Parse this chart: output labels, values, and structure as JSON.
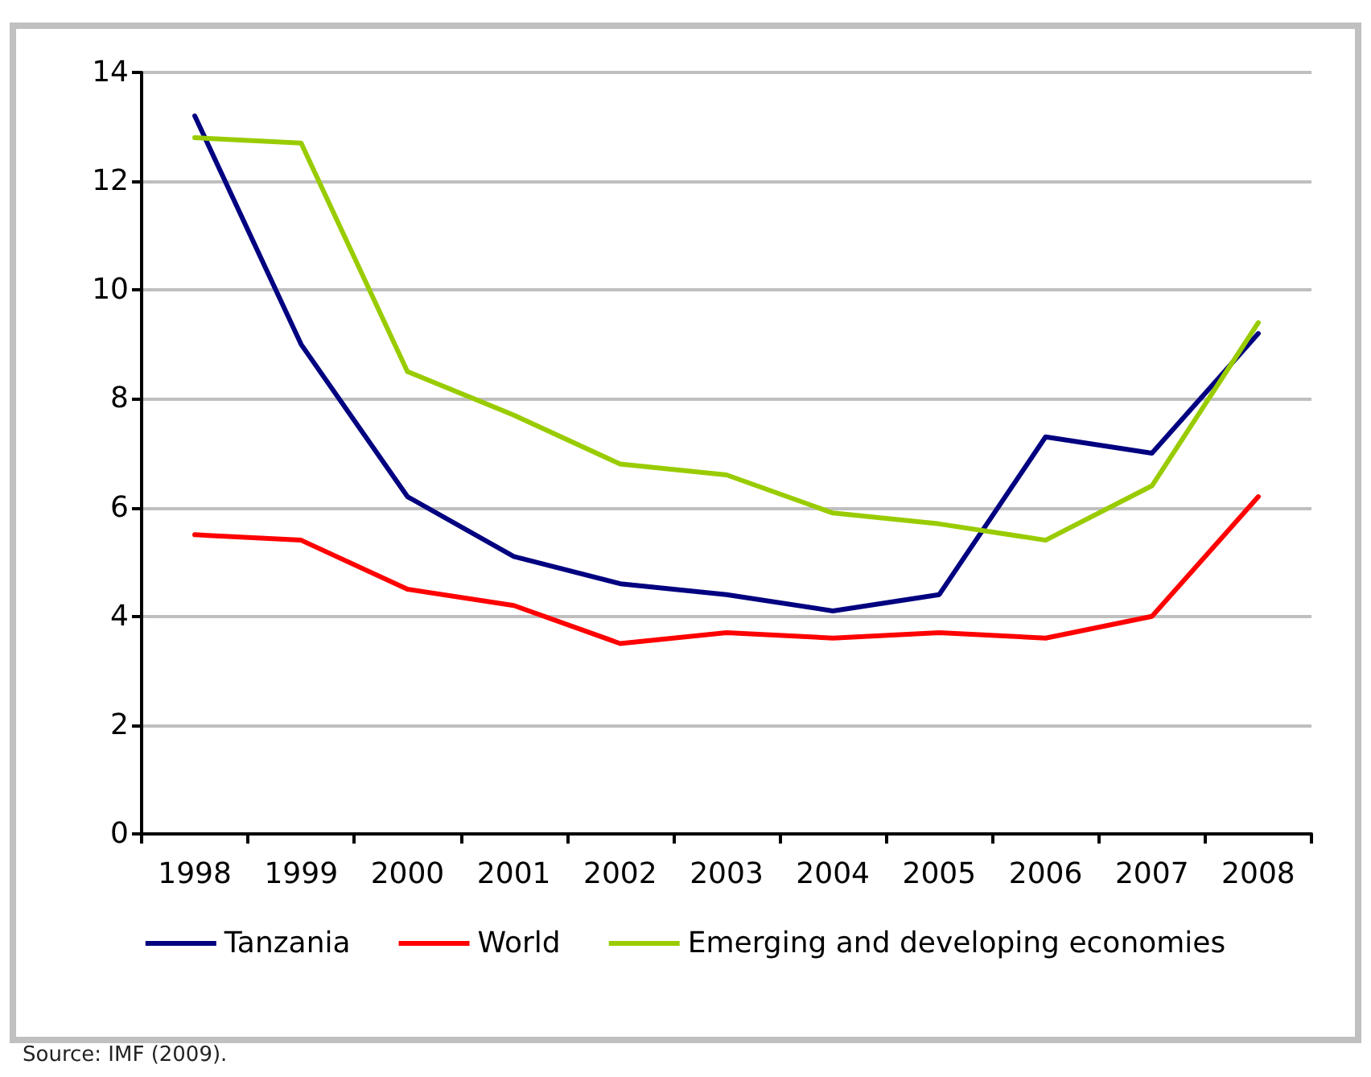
{
  "chart_data": {
    "type": "line",
    "categories": [
      "1998",
      "1999",
      "2000",
      "2001",
      "2002",
      "2003",
      "2004",
      "2005",
      "2006",
      "2007",
      "2008"
    ],
    "series": [
      {
        "name": "Tanzania",
        "color": "#000080",
        "values": [
          13.2,
          9.0,
          6.2,
          5.1,
          4.6,
          4.4,
          4.1,
          4.4,
          7.3,
          7.0,
          9.2
        ]
      },
      {
        "name": "World",
        "color": "#ff0000",
        "values": [
          5.5,
          5.4,
          4.5,
          4.2,
          3.5,
          3.7,
          3.6,
          3.7,
          3.6,
          4.0,
          6.2
        ]
      },
      {
        "name": "Emerging and developing economies",
        "color": "#99cc00",
        "values": [
          12.8,
          12.7,
          8.5,
          7.7,
          6.8,
          6.6,
          5.9,
          5.7,
          5.4,
          6.4,
          9.4
        ]
      }
    ],
    "ylim": [
      0,
      14
    ],
    "yticks": [
      0,
      2,
      4,
      6,
      8,
      10,
      12,
      14
    ],
    "grid": "y",
    "legend": "bottom",
    "marker": "none",
    "line_style": "solid",
    "annotations": [
      "Source: IMF (2009)."
    ]
  }
}
